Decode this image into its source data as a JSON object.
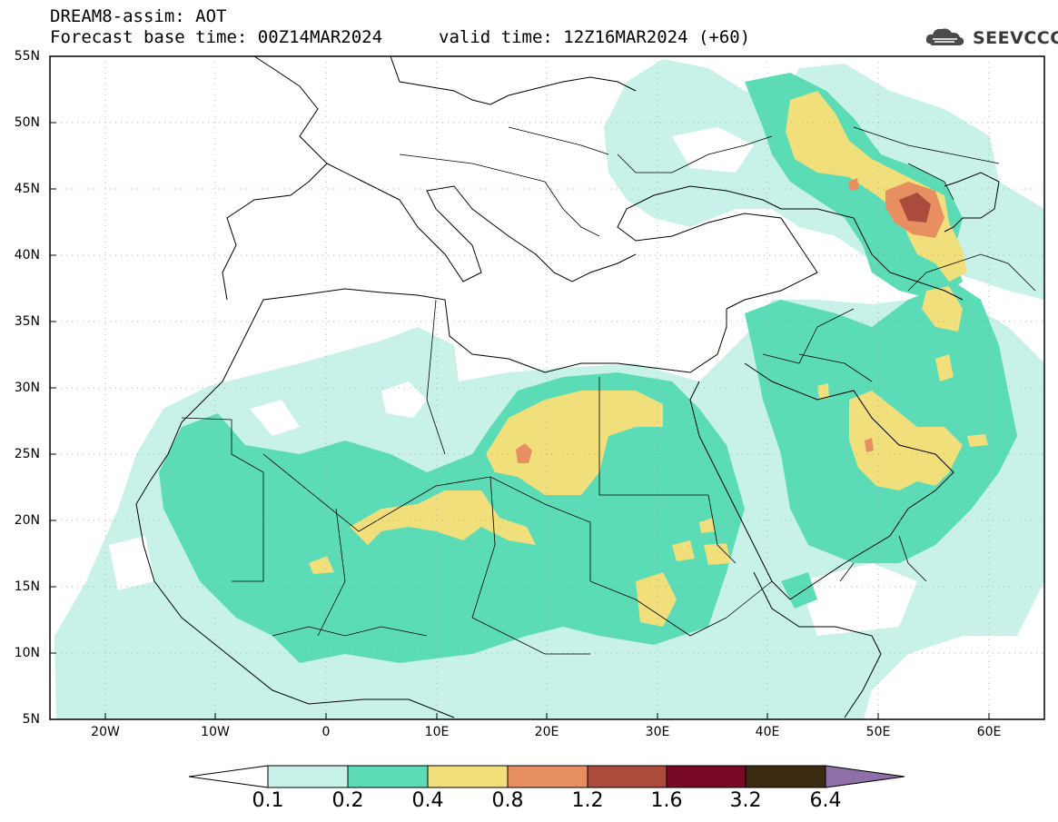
{
  "header": {
    "title": "DREAM8-assim: AOT",
    "base_time": "Forecast base time: 00Z14MAR2024",
    "valid_time": "valid time: 12Z16MAR2024 (+60)",
    "logo_text": "SEEVCCC"
  },
  "map": {
    "region": "North Africa, Mediterranean and Middle East",
    "lon_range": [
      -25,
      65
    ],
    "lat_range": [
      5,
      55
    ],
    "lat_labels": [
      "55N",
      "50N",
      "45N",
      "40N",
      "35N",
      "30N",
      "25N",
      "20N",
      "15N",
      "10N",
      "5N"
    ],
    "lon_labels": [
      "20W",
      "10W",
      "0",
      "10E",
      "20E",
      "30E",
      "40E",
      "50E",
      "60E"
    ],
    "field": "Aerosol optical thickness (dust)"
  },
  "colorbar": {
    "levels": [
      "0.1",
      "0.2",
      "0.4",
      "0.8",
      "1.2",
      "1.6",
      "3.2",
      "6.4"
    ],
    "colors": [
      "#ffffff",
      "#c8f2e9",
      "#5cdcb6",
      "#f0df7a",
      "#e88f62",
      "#aa4b3c",
      "#780a26",
      "#3c2a12",
      "#8f6fa7"
    ]
  },
  "colors": {
    "c01": "#c8f2e9",
    "c02": "#5cdcb6",
    "c04": "#f0df7a",
    "c08": "#e88f62",
    "c12": "#aa4b3c",
    "frame": "#000000"
  }
}
